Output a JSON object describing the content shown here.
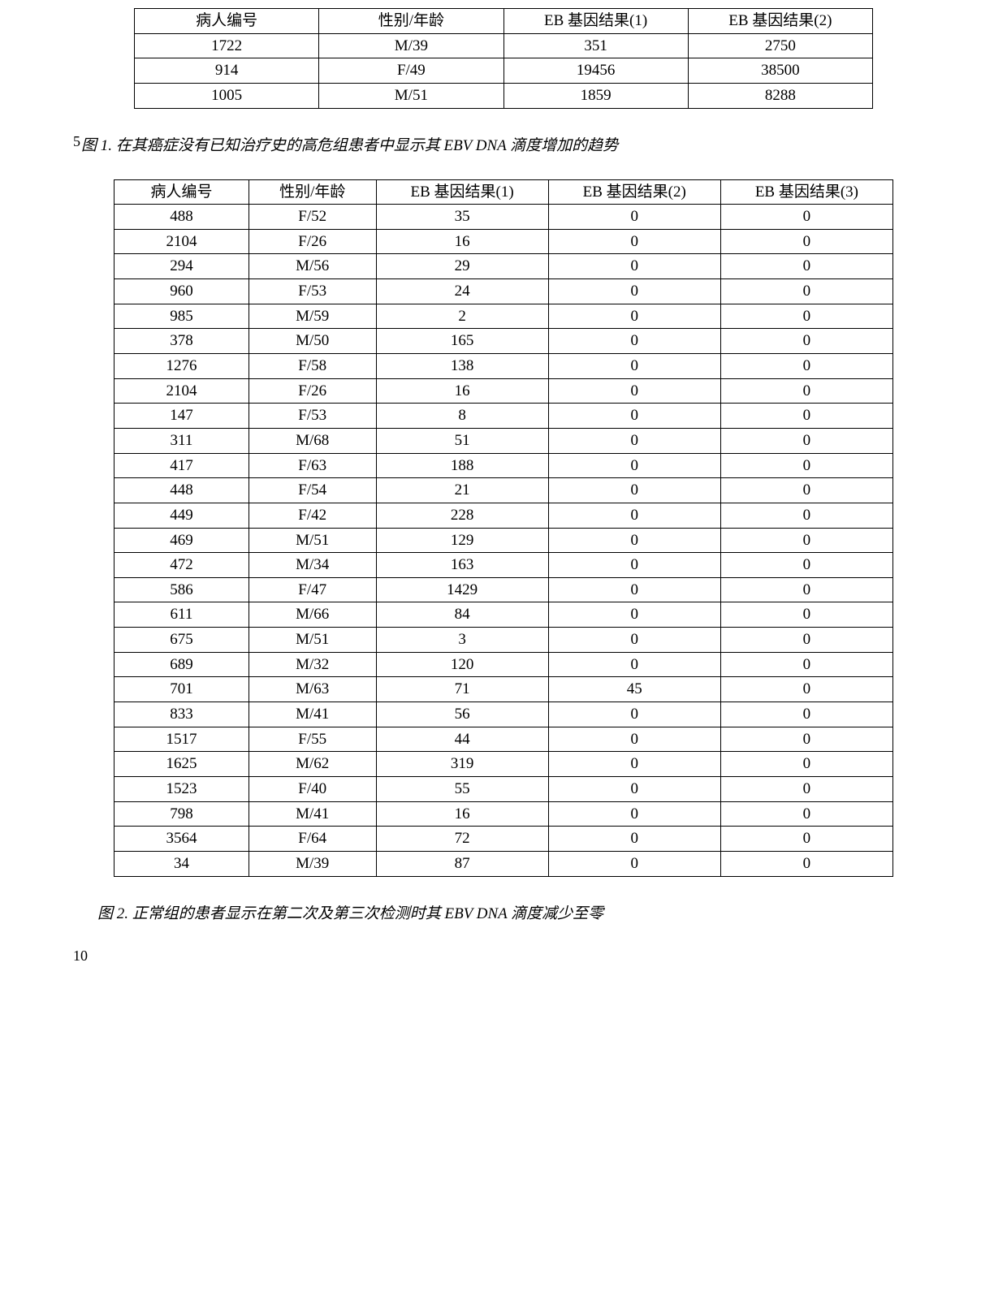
{
  "table1": {
    "headers": [
      "病人编号",
      "性别/年龄",
      "EB 基因结果(1)",
      "EB 基因结果(2)"
    ],
    "rows": [
      [
        "1722",
        "M/39",
        "351",
        "2750"
      ],
      [
        "914",
        "F/49",
        "19456",
        "38500"
      ],
      [
        "1005",
        "M/51",
        "1859",
        "8288"
      ]
    ]
  },
  "caption1_num": "5",
  "caption1": "图 1.  在其癌症没有已知治疗史的高危组患者中显示其 EBV DNA 滴度增加的趋势",
  "table2": {
    "headers": [
      "病人编号",
      "性别/年龄",
      "EB 基因结果(1)",
      "EB 基因结果(2)",
      "EB 基因结果(3)"
    ],
    "rows": [
      [
        "488",
        "F/52",
        "35",
        "0",
        "0"
      ],
      [
        "2104",
        "F/26",
        "16",
        "0",
        "0"
      ],
      [
        "294",
        "M/56",
        "29",
        "0",
        "0"
      ],
      [
        "960",
        "F/53",
        "24",
        "0",
        "0"
      ],
      [
        "985",
        "M/59",
        "2",
        "0",
        "0"
      ],
      [
        "378",
        "M/50",
        "165",
        "0",
        "0"
      ],
      [
        "1276",
        "F/58",
        "138",
        "0",
        "0"
      ],
      [
        "2104",
        "F/26",
        "16",
        "0",
        "0"
      ],
      [
        "147",
        "F/53",
        "8",
        "0",
        "0"
      ],
      [
        "311",
        "M/68",
        "51",
        "0",
        "0"
      ],
      [
        "417",
        "F/63",
        "188",
        "0",
        "0"
      ],
      [
        "448",
        "F/54",
        "21",
        "0",
        "0"
      ],
      [
        "449",
        "F/42",
        "228",
        "0",
        "0"
      ],
      [
        "469",
        "M/51",
        "129",
        "0",
        "0"
      ],
      [
        "472",
        "M/34",
        "163",
        "0",
        "0"
      ],
      [
        "586",
        "F/47",
        "1429",
        "0",
        "0"
      ],
      [
        "611",
        "M/66",
        "84",
        "0",
        "0"
      ],
      [
        "675",
        "M/51",
        "3",
        "0",
        "0"
      ],
      [
        "689",
        "M/32",
        "120",
        "0",
        "0"
      ],
      [
        "701",
        "M/63",
        "71",
        "45",
        "0"
      ],
      [
        "833",
        "M/41",
        "56",
        "0",
        "0"
      ],
      [
        "1517",
        "F/55",
        "44",
        "0",
        "0"
      ],
      [
        "1625",
        "M/62",
        "319",
        "0",
        "0"
      ],
      [
        "1523",
        "F/40",
        "55",
        "0",
        "0"
      ],
      [
        "798",
        "M/41",
        "16",
        "0",
        "0"
      ],
      [
        "3564",
        "F/64",
        "72",
        "0",
        "0"
      ],
      [
        "34",
        "M/39",
        "87",
        "0",
        "0"
      ]
    ]
  },
  "caption2": "图 2.  正常组的患者显示在第二次及第三次检测时其 EBV DNA 滴度减少至零",
  "caption2_num": "10",
  "style": {
    "border_color": "#000000",
    "background": "#ffffff",
    "text_color": "#000000",
    "font_family": "SimSun, Times New Roman, serif",
    "font_size_pt": 14
  }
}
